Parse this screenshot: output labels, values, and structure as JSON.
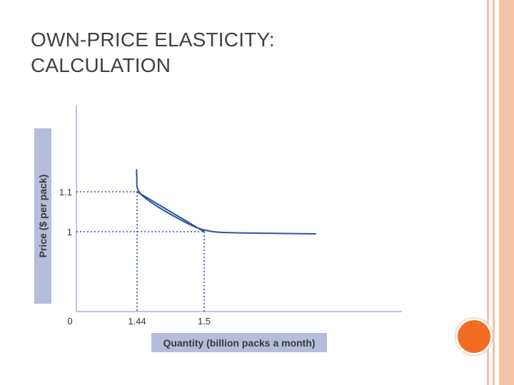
{
  "slide": {
    "title_line1": "OWN-PRICE ELASTICITY:",
    "title_line2": "CALCULATION"
  },
  "colors": {
    "curve": "#2a56a0",
    "axis": "#a9b2ce",
    "label_band": "#b6bcdb",
    "accent_orange": "#f26d21",
    "stripe_peach": "#f4c3a9",
    "text": "#404040"
  },
  "chart_data": {
    "type": "line",
    "title": "",
    "xlabel": "Quantity (billion packs a month)",
    "ylabel": "Price ($ per pack)",
    "x_ticks": [
      {
        "value": 0,
        "label": "0"
      },
      {
        "value": 1.44,
        "label": "1.44"
      },
      {
        "value": 1.5,
        "label": "1.5"
      }
    ],
    "y_ticks": [
      {
        "value": 1.1,
        "label": "1.1"
      },
      {
        "value": 1,
        "label": "1"
      }
    ],
    "series": [
      {
        "kind": "demand-curve",
        "points": [
          [
            1.429,
            1.155
          ],
          [
            1.433,
            1.13
          ],
          [
            1.44,
            1.1
          ],
          [
            1.455,
            1.068
          ],
          [
            1.475,
            1.035
          ],
          [
            1.5,
            1.0
          ],
          [
            1.53,
            0.985
          ],
          [
            1.575,
            0.978
          ],
          [
            1.6,
            0.973
          ]
        ]
      },
      {
        "kind": "chord",
        "points": [
          [
            1.44,
            1.1
          ],
          [
            1.5,
            1.0
          ]
        ]
      }
    ],
    "reference_points": [
      {
        "x": 1.44,
        "y": 1.1
      },
      {
        "x": 1.5,
        "y": 1.0
      }
    ],
    "grid": false
  }
}
